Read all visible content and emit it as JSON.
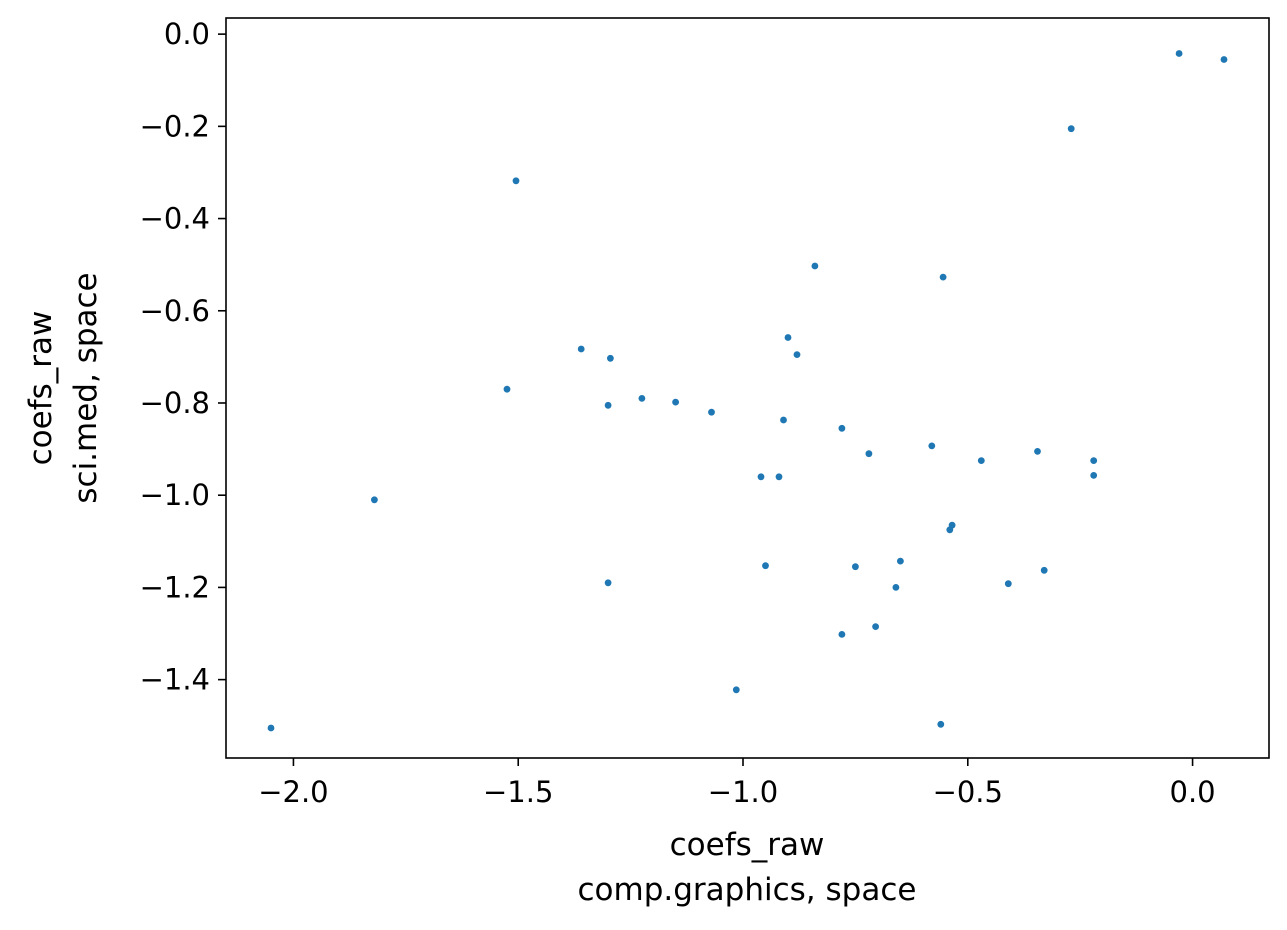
{
  "chart_data": {
    "type": "scatter",
    "title": "",
    "xlabel_lines": [
      "coefs_raw",
      "comp.graphics, space"
    ],
    "ylabel_lines": [
      "coefs_raw",
      "sci.med, space"
    ],
    "xlim": [
      -2.15,
      0.17
    ],
    "ylim": [
      -1.57,
      0.035
    ],
    "xticks": [
      -2.0,
      -1.5,
      -1.0,
      -0.5,
      0.0
    ],
    "xtick_labels": [
      "−2.0",
      "−1.5",
      "−1.0",
      "−0.5",
      "0.0"
    ],
    "yticks": [
      0.0,
      -0.2,
      -0.4,
      -0.6,
      -0.8,
      -1.0,
      -1.2,
      -1.4
    ],
    "ytick_labels": [
      "0.0",
      "−0.2",
      "−0.4",
      "−0.6",
      "−0.8",
      "−1.0",
      "−1.2",
      "−1.4"
    ],
    "grid": false,
    "marker_color": "#1f77b4",
    "points": [
      {
        "x": -2.05,
        "y": -1.505
      },
      {
        "x": -1.82,
        "y": -1.01
      },
      {
        "x": -1.525,
        "y": -0.77
      },
      {
        "x": -1.505,
        "y": -0.318
      },
      {
        "x": -1.36,
        "y": -0.683
      },
      {
        "x": -1.295,
        "y": -0.703
      },
      {
        "x": -1.3,
        "y": -0.805
      },
      {
        "x": -1.3,
        "y": -1.19
      },
      {
        "x": -1.225,
        "y": -0.79
      },
      {
        "x": -1.15,
        "y": -0.798
      },
      {
        "x": -1.07,
        "y": -0.82
      },
      {
        "x": -1.015,
        "y": -1.422
      },
      {
        "x": -0.96,
        "y": -0.96
      },
      {
        "x": -0.95,
        "y": -1.153
      },
      {
        "x": -0.92,
        "y": -0.96
      },
      {
        "x": -0.91,
        "y": -0.837
      },
      {
        "x": -0.9,
        "y": -0.658
      },
      {
        "x": -0.88,
        "y": -0.695
      },
      {
        "x": -0.84,
        "y": -0.503
      },
      {
        "x": -0.78,
        "y": -0.855
      },
      {
        "x": -0.78,
        "y": -1.302
      },
      {
        "x": -0.75,
        "y": -1.155
      },
      {
        "x": -0.72,
        "y": -0.91
      },
      {
        "x": -0.705,
        "y": -1.285
      },
      {
        "x": -0.66,
        "y": -1.2
      },
      {
        "x": -0.65,
        "y": -1.143
      },
      {
        "x": -0.58,
        "y": -0.893
      },
      {
        "x": -0.56,
        "y": -1.497
      },
      {
        "x": -0.555,
        "y": -0.527
      },
      {
        "x": -0.54,
        "y": -1.075
      },
      {
        "x": -0.535,
        "y": -1.065
      },
      {
        "x": -0.47,
        "y": -0.925
      },
      {
        "x": -0.41,
        "y": -1.192
      },
      {
        "x": -0.345,
        "y": -0.905
      },
      {
        "x": -0.33,
        "y": -1.163
      },
      {
        "x": -0.27,
        "y": -0.205
      },
      {
        "x": -0.22,
        "y": -0.925
      },
      {
        "x": -0.22,
        "y": -0.957
      },
      {
        "x": -0.03,
        "y": -0.042
      },
      {
        "x": 0.07,
        "y": -0.055
      }
    ]
  }
}
